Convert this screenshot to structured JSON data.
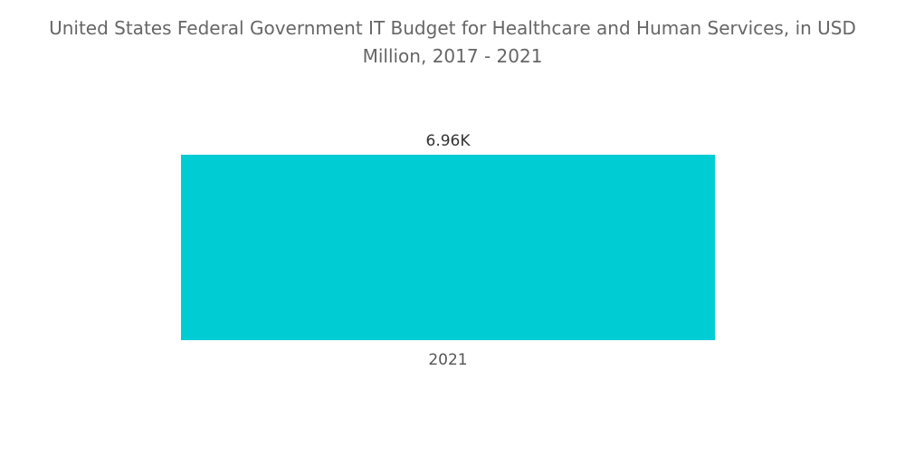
{
  "chart_data": {
    "type": "bar",
    "title_line1": "United States Federal Government IT Budget for Healthcare and Human Services, in USD",
    "title_line2": "Million, 2017 - 2021",
    "xlabel": "",
    "ylabel": "",
    "categories": [
      "2021"
    ],
    "values": [
      6960
    ],
    "data_labels": [
      "6.96K"
    ],
    "ylim": [
      0,
      6960
    ],
    "grid": false,
    "legend": "none",
    "colors": {
      "bar": "#00ccd3",
      "label": "#333333",
      "tick": "#555555",
      "title": "#666666"
    }
  }
}
